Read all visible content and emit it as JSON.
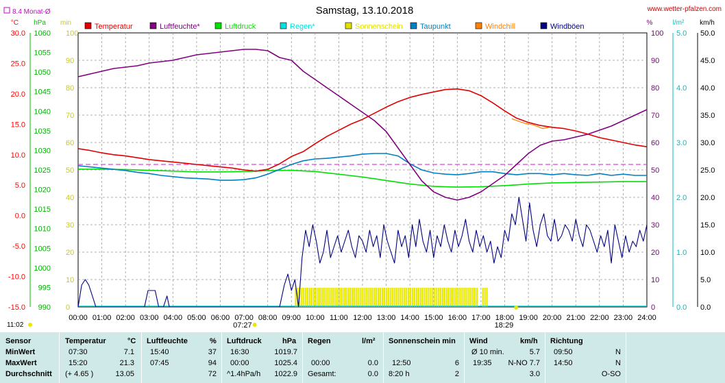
{
  "chart_data": {
    "type": "line",
    "title": "Samstag, 13.10.2018",
    "source": "www.wetter-pfalzen.com",
    "monthly_avg_label": "8.4 Monat-Ø",
    "monthly_avg_temperature": 8.4,
    "x_ticks": [
      "00:00",
      "01:00",
      "02:00",
      "03:00",
      "04:00",
      "05:00",
      "06:00",
      "07:00",
      "08:00",
      "09:00",
      "10:00",
      "11:00",
      "12:00",
      "13:00",
      "14:00",
      "15:00",
      "16:00",
      "17:00",
      "18:00",
      "19:00",
      "20:00",
      "21:00",
      "22:00",
      "23:00",
      "24:00"
    ],
    "sunrise": "07:27",
    "sunset": "18:29",
    "clock": "11:02",
    "grid": true,
    "axes": {
      "temp": {
        "unit": "°C",
        "ylim": [
          -15,
          30
        ],
        "ticks": [
          "30.0",
          "25.0",
          "20.0",
          "15.0",
          "10.0",
          "5.0",
          "0.0",
          "-5.0",
          "-10.0",
          "-15.0"
        ],
        "color": "#ff0000"
      },
      "pressure": {
        "unit": "hPa",
        "ylim": [
          990,
          1060
        ],
        "ticks": [
          "1060",
          "1055",
          "1050",
          "1045",
          "1040",
          "1035",
          "1030",
          "1025",
          "1020",
          "1015",
          "1010",
          "1005",
          "1000",
          "995",
          "990"
        ],
        "color": "#00c000"
      },
      "sunshine": {
        "unit": "min",
        "ylim": [
          0,
          100
        ],
        "ticks": [
          "100",
          "90",
          "80",
          "70",
          "60",
          "50",
          "40",
          "30",
          "20",
          "10",
          "0"
        ],
        "color": "#cccc00"
      },
      "humidity": {
        "unit": "%",
        "ylim": [
          0,
          100
        ],
        "ticks": [
          "100",
          "90",
          "80",
          "70",
          "60",
          "50",
          "40",
          "30",
          "20",
          "10",
          "0"
        ],
        "color": "#800080"
      },
      "rain": {
        "unit": "l/m²",
        "ylim": [
          0,
          5
        ],
        "ticks": [
          "5.0",
          "4.0",
          "3.0",
          "2.0",
          "1.0",
          "0.0"
        ],
        "color": "#00c0c0"
      },
      "wind": {
        "unit": "km/h",
        "ylim": [
          0,
          50
        ],
        "ticks": [
          "50.0",
          "45.0",
          "40.0",
          "35.0",
          "30.0",
          "25.0",
          "20.0",
          "15.0",
          "10.0",
          "5.0",
          "0.0"
        ],
        "color": "#000000"
      }
    },
    "legend": [
      {
        "name": "Temperatur",
        "color": "#e00000"
      },
      {
        "name": "Luftfeuchte*",
        "color": "#800080"
      },
      {
        "name": "Luftdruck",
        "color": "#00e000"
      },
      {
        "name": "Regen*",
        "color": "#00e0e0"
      },
      {
        "name": "Sonnenschein",
        "color": "#e0e000"
      },
      {
        "name": "Taupunkt",
        "color": "#0080c0"
      },
      {
        "name": "Windchill",
        "color": "#ff8000"
      },
      {
        "name": "Windböen",
        "color": "#000080"
      }
    ],
    "series": [
      {
        "name": "Temperatur",
        "axis": "temp",
        "color": "#e00000",
        "width": 1.6,
        "x": [
          0,
          0.5,
          1,
          1.5,
          2,
          2.5,
          3,
          3.5,
          4,
          4.5,
          5,
          5.5,
          6,
          6.5,
          7,
          7.5,
          8,
          8.5,
          9,
          9.5,
          10,
          10.5,
          11,
          11.5,
          12,
          12.5,
          13,
          13.5,
          14,
          14.5,
          15,
          15.5,
          16,
          16.5,
          17,
          17.5,
          18,
          18.5,
          19,
          19.5,
          20,
          20.5,
          21,
          21.5,
          22,
          22.5,
          23,
          23.5,
          24
        ],
        "values": [
          11,
          10.7,
          10.3,
          10,
          9.8,
          9.5,
          9.2,
          9,
          8.8,
          8.6,
          8.4,
          8.2,
          8,
          7.8,
          7.5,
          7.3,
          7.6,
          8.5,
          9.7,
          10.5,
          11.8,
          13,
          14,
          15,
          15.8,
          16.8,
          17.8,
          18.7,
          19.4,
          19.9,
          20.3,
          20.7,
          20.8,
          20.5,
          19.7,
          18.5,
          17.2,
          16,
          15.3,
          14.8,
          14.5,
          14.3,
          13.9,
          13.4,
          12.8,
          12.4,
          12,
          11.6,
          11.3
        ]
      },
      {
        "name": "Luftfeuchte*",
        "axis": "humidity",
        "color": "#800080",
        "width": 1.6,
        "x": [
          0,
          0.5,
          1,
          1.5,
          2,
          2.5,
          3,
          3.5,
          4,
          4.5,
          5,
          5.5,
          6,
          6.5,
          7,
          7.5,
          8,
          8.5,
          9,
          9.5,
          10,
          10.5,
          11,
          11.5,
          12,
          12.5,
          13,
          13.5,
          14,
          14.5,
          15,
          15.5,
          16,
          16.5,
          17,
          17.5,
          18,
          18.5,
          19,
          19.5,
          20,
          20.5,
          21,
          21.5,
          22,
          22.5,
          23,
          23.5,
          24
        ],
        "values": [
          84,
          85,
          86,
          87,
          87.5,
          88,
          89,
          89.5,
          90,
          91,
          92,
          92.5,
          93,
          93.5,
          94,
          94,
          93.5,
          91,
          90,
          86,
          83,
          80,
          77,
          74,
          71,
          68,
          64,
          58,
          52,
          46,
          42,
          40,
          39,
          40,
          42,
          45,
          48,
          52,
          56,
          59,
          60.5,
          61,
          62,
          63,
          64.5,
          66,
          68,
          70,
          72
        ]
      },
      {
        "name": "Luftdruck",
        "axis": "pressure",
        "color": "#00e000",
        "width": 1.6,
        "x": [
          0,
          1,
          2,
          3,
          4,
          5,
          6,
          7,
          8,
          9,
          10,
          11,
          12,
          13,
          14,
          15,
          16,
          17,
          18,
          19,
          20,
          21,
          22,
          23,
          24
        ],
        "values": [
          1025.2,
          1025.2,
          1025.1,
          1024.9,
          1024.7,
          1024.5,
          1024.5,
          1024.6,
          1024.8,
          1024.9,
          1024.6,
          1023.9,
          1023.2,
          1022.3,
          1021.4,
          1020.8,
          1020.6,
          1020.7,
          1021.0,
          1021.4,
          1021.7,
          1021.8,
          1021.9,
          1022.0,
          1022.0
        ]
      },
      {
        "name": "Taupunkt",
        "axis": "temp",
        "color": "#0080c0",
        "width": 1.6,
        "x": [
          0,
          0.5,
          1,
          1.5,
          2,
          2.5,
          3,
          3.5,
          4,
          4.5,
          5,
          5.5,
          6,
          6.5,
          7,
          7.5,
          8,
          8.5,
          9,
          9.5,
          10,
          10.5,
          11,
          11.5,
          12,
          12.5,
          13,
          13.5,
          14,
          14.5,
          15,
          15.5,
          16,
          16.5,
          17,
          17.5,
          18,
          18.5,
          19,
          19.5,
          20,
          20.5,
          21,
          21.5,
          22,
          22.5,
          23,
          23.5,
          24
        ],
        "values": [
          8.2,
          8,
          7.8,
          7.6,
          7.4,
          7.1,
          6.9,
          6.6,
          6.4,
          6.2,
          6.1,
          6,
          5.8,
          5.8,
          5.9,
          6.2,
          6.8,
          7.6,
          8.4,
          9,
          9.3,
          9.4,
          9.6,
          9.8,
          10.1,
          10.2,
          10.2,
          9.8,
          8.5,
          7.5,
          7,
          6.8,
          6.7,
          6.9,
          7.2,
          7.2,
          6.9,
          6.7,
          6.9,
          6.9,
          6.7,
          6.9,
          6.7,
          6.6,
          6.9,
          6.6,
          6.8,
          6.6,
          6.6
        ]
      },
      {
        "name": "Windchill",
        "axis": "temp",
        "color": "#ff8000",
        "width": 1.2,
        "x": [
          18.3,
          18.8,
          19.2,
          19.6,
          20.0
        ],
        "values": [
          15.9,
          15.2,
          14.9,
          14.3,
          14.6
        ]
      },
      {
        "name": "Windböen",
        "axis": "wind",
        "color": "#000080",
        "width": 1.1,
        "x": [
          0,
          0.15,
          0.3,
          0.45,
          0.6,
          0.75,
          1,
          1.5,
          2,
          2.5,
          2.8,
          2.95,
          3.1,
          3.25,
          3.4,
          3.6,
          3.75,
          3.85,
          4,
          5,
          6,
          7,
          8,
          8.5,
          8.7,
          8.85,
          9.0,
          9.15,
          9.3,
          9.45,
          9.6,
          9.75,
          9.9,
          10.05,
          10.2,
          10.35,
          10.5,
          10.65,
          10.8,
          10.95,
          11.1,
          11.25,
          11.4,
          11.55,
          11.7,
          11.85,
          12.0,
          12.15,
          12.3,
          12.45,
          12.6,
          12.75,
          12.9,
          13.05,
          13.2,
          13.35,
          13.5,
          13.65,
          13.8,
          13.95,
          14.1,
          14.25,
          14.4,
          14.55,
          14.7,
          14.85,
          15.0,
          15.15,
          15.3,
          15.45,
          15.6,
          15.75,
          15.9,
          16.05,
          16.2,
          16.35,
          16.5,
          16.65,
          16.8,
          16.95,
          17.1,
          17.25,
          17.4,
          17.55,
          17.7,
          17.85,
          18.0,
          18.15,
          18.3,
          18.45,
          18.6,
          18.75,
          18.9,
          19.05,
          19.2,
          19.35,
          19.5,
          19.65,
          19.8,
          19.95,
          20.1,
          20.25,
          20.4,
          20.55,
          20.7,
          20.85,
          21.0,
          21.15,
          21.3,
          21.45,
          21.6,
          21.75,
          21.9,
          22.05,
          22.2,
          22.35,
          22.5,
          22.65,
          22.8,
          22.95,
          23.1,
          23.25,
          23.4,
          23.55,
          23.7,
          23.85,
          24
        ],
        "values": [
          0,
          4,
          5,
          4,
          2,
          0,
          0,
          0,
          0,
          0,
          0,
          3,
          3,
          3,
          0,
          0,
          2,
          0,
          0,
          0,
          0,
          0,
          0,
          0,
          4,
          6,
          3,
          5,
          0,
          9,
          14,
          11,
          15,
          12,
          8,
          10,
          14,
          9,
          11,
          13,
          10,
          12,
          14,
          11,
          9,
          13,
          12,
          10,
          14,
          11,
          13,
          9,
          15,
          12,
          10,
          8,
          14,
          11,
          13,
          9,
          15,
          11,
          16,
          12,
          10,
          14,
          9,
          13,
          11,
          15,
          12,
          10,
          14,
          11,
          13,
          16,
          12,
          10,
          14,
          11,
          13,
          10,
          12,
          8,
          11,
          9,
          14,
          12,
          17,
          15,
          20,
          16,
          12,
          19,
          14,
          11,
          15,
          17,
          13,
          12,
          16,
          12,
          13,
          15,
          14,
          12,
          16,
          13,
          11,
          15,
          14,
          12,
          10,
          13,
          11,
          14,
          8,
          15,
          12,
          9,
          13,
          10,
          12,
          11,
          14,
          12,
          15
        ]
      }
    ],
    "monthly_avg_line": {
      "axis": "temp",
      "value": 8.4,
      "color": "#e040e0"
    },
    "sunshine_bars": {
      "axis": "sunshine",
      "color": "#e8e800",
      "ranges": [
        [
          9.15,
          16.85
        ],
        [
          17.05,
          17.25
        ]
      ],
      "value": 5
    }
  },
  "stats": {
    "headers": [
      "Sensor",
      "Temperatur",
      "°C",
      "Luftfeuchte",
      "%",
      "Luftdruck",
      "hPa",
      "Regen",
      "l/m²",
      "Sonnenschein min",
      "Wind",
      "km/h",
      "Richtung"
    ],
    "rows": [
      {
        "label": "MinWert",
        "t_time": "07:30",
        "t_val": "7.1",
        "h_time": "15:40",
        "h_val": "37",
        "p_time": "16:30",
        "p_val": "1019.7",
        "r_time": "",
        "r_val": "",
        "s_time": "",
        "s_val": "",
        "w_time": "Ø 10 min.",
        "w_val": "5.7",
        "d_time": "09:50",
        "d_val": "N"
      },
      {
        "label": "MaxWert",
        "t_time": "15:20",
        "t_val": "21.3",
        "h_time": "07:45",
        "h_val": "94",
        "p_time": "00:00",
        "p_val": "1025.4",
        "r_time": "00:00",
        "r_val": "0.0",
        "s_time": "12:50",
        "s_val": "6",
        "w_time": "19:35",
        "w_val": "N-NO 7.7",
        "d_time": "14:50",
        "d_val": "N"
      },
      {
        "label": "Durchschnitt",
        "t_time": "(+ 4.65 )",
        "t_val": "13.05",
        "h_time": "",
        "h_val": "72",
        "p_time": "^1.4hPa/h",
        "p_val": "1022.9",
        "r_time": "Gesamt:",
        "r_val": "0.0",
        "s_time": "8:20 h",
        "s_val": "2",
        "w_time": "",
        "w_val": "3.0",
        "d_time": "",
        "d_val": "O-SO"
      }
    ]
  }
}
